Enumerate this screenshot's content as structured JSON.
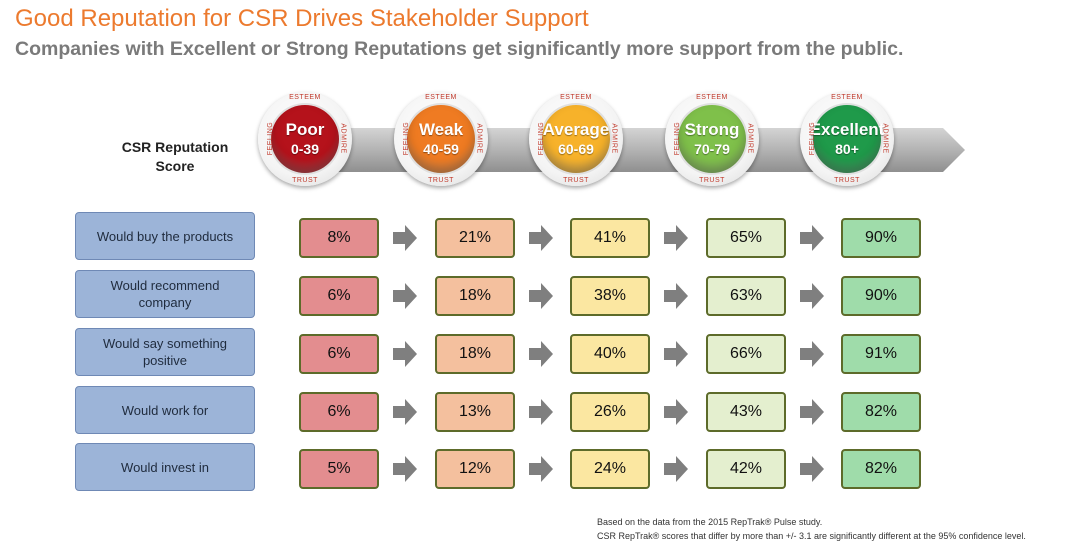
{
  "title": "Good Reputation for CSR Drives Stakeholder Support",
  "subtitle": "Companies with Excellent or Strong Reputations get significantly more support from the public.",
  "axis_label_line1": "CSR Reputation",
  "axis_label_line2": "Score",
  "badge_labels": {
    "top": "ESTEEM",
    "bottom": "TRUST",
    "left": "FEELING",
    "right": "ADMIRE"
  },
  "footnotes": [
    "Based on the data from the 2015 RepTrak® Pulse study.",
    "CSR RepTrak® scores that differ by more than +/- 3.1 are significantly different at the 95% confidence level."
  ],
  "colors": {
    "title": "#ec7a2e",
    "poor": "#e38d8f",
    "weak": "#f4c09e",
    "average": "#fbe7a1",
    "strong": "#e4efcf",
    "excellent": "#9fdcaa",
    "badge_poor": "#b5121b",
    "badge_weak": "#ef7b22",
    "badge_average": "#f7b22a",
    "badge_strong": "#7fc04a",
    "badge_excellent": "#1f9a4a"
  },
  "chart_data": {
    "type": "table",
    "title": "Good Reputation for CSR Drives Stakeholder Support",
    "categories": [
      {
        "name": "Poor",
        "range": "0-39"
      },
      {
        "name": "Weak",
        "range": "40-59"
      },
      {
        "name": "Average",
        "range": "60-69"
      },
      {
        "name": "Strong",
        "range": "70-79"
      },
      {
        "name": "Excellent",
        "range": "80+"
      }
    ],
    "series": [
      {
        "name": "Would buy the products",
        "values": [
          "8%",
          "21%",
          "41%",
          "65%",
          "90%"
        ]
      },
      {
        "name": "Would recommend company",
        "values": [
          "6%",
          "18%",
          "38%",
          "63%",
          "90%"
        ]
      },
      {
        "name": "Would say something positive",
        "values": [
          "6%",
          "18%",
          "40%",
          "66%",
          "91%"
        ]
      },
      {
        "name": "Would work for",
        "values": [
          "6%",
          "13%",
          "26%",
          "43%",
          "82%"
        ]
      },
      {
        "name": "Would invest in",
        "values": [
          "5%",
          "12%",
          "24%",
          "42%",
          "82%"
        ]
      }
    ]
  }
}
